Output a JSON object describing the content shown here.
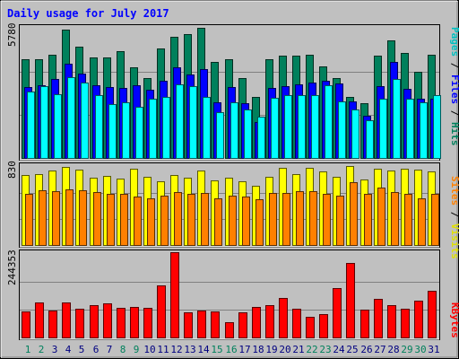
{
  "chart_data": [
    {
      "type": "bar",
      "title": "Daily usage for July 2017",
      "panel": "top",
      "ymax_label": "5780",
      "ylim": [
        0,
        5780
      ],
      "categories": [
        "1",
        "2",
        "3",
        "4",
        "5",
        "6",
        "7",
        "8",
        "9",
        "10",
        "11",
        "12",
        "13",
        "14",
        "15",
        "16",
        "17",
        "18",
        "19",
        "20",
        "21",
        "22",
        "23",
        "24",
        "25",
        "26",
        "27",
        "28",
        "29",
        "30",
        "31"
      ],
      "series": [
        {
          "name": "Hits",
          "color": "#00805c",
          "values": [
            4380,
            4380,
            4580,
            5680,
            4900,
            4430,
            4430,
            4700,
            4030,
            3530,
            4830,
            5330,
            5480,
            5730,
            4230,
            4380,
            3530,
            2730,
            4380,
            4530,
            4530,
            4580,
            4050,
            3530,
            2730,
            2430,
            4530,
            5180,
            4630,
            3830,
            4580
          ]
        },
        {
          "name": "Files",
          "color": "#0000ff",
          "values": [
            3150,
            3230,
            3480,
            4150,
            3730,
            3230,
            3130,
            3100,
            3230,
            3030,
            3430,
            4030,
            3680,
            3930,
            2480,
            3130,
            2430,
            1630,
            3100,
            3180,
            3280,
            3330,
            3430,
            3300,
            2530,
            1880,
            3180,
            4250,
            3080,
            2630,
            2630
          ]
        },
        {
          "name": "Pages",
          "color": "#00ffff",
          "values": [
            2950,
            3180,
            2830,
            3580,
            3330,
            2780,
            2380,
            2480,
            2280,
            2630,
            2730,
            3280,
            3180,
            2730,
            2030,
            2480,
            2180,
            1830,
            2680,
            2780,
            2780,
            2780,
            3230,
            2530,
            2180,
            1680,
            2630,
            3480,
            2630,
            2480,
            2780
          ]
        }
      ]
    },
    {
      "type": "bar",
      "panel": "middle",
      "ymax_label": "830",
      "ylim": [
        0,
        830
      ],
      "categories": [
        "1",
        "2",
        "3",
        "4",
        "5",
        "6",
        "7",
        "8",
        "9",
        "10",
        "11",
        "12",
        "13",
        "14",
        "15",
        "16",
        "17",
        "18",
        "19",
        "20",
        "21",
        "22",
        "23",
        "24",
        "25",
        "26",
        "27",
        "28",
        "29",
        "30",
        "31"
      ],
      "series": [
        {
          "name": "Visits",
          "color": "#ffff00",
          "values": [
            725,
            738,
            775,
            808,
            785,
            700,
            720,
            690,
            795,
            710,
            662,
            730,
            702,
            778,
            672,
            702,
            660,
            620,
            710,
            800,
            735,
            800,
            765,
            712,
            818,
            685,
            792,
            775,
            792,
            780,
            770
          ]
        },
        {
          "name": "Sites",
          "color": "#ff8000",
          "values": [
            538,
            575,
            565,
            585,
            570,
            551,
            538,
            531,
            511,
            487,
            513,
            551,
            539,
            541,
            493,
            513,
            511,
            480,
            543,
            543,
            565,
            559,
            531,
            519,
            651,
            531,
            602,
            551,
            536,
            493,
            531
          ]
        }
      ]
    },
    {
      "type": "bar",
      "panel": "bottom",
      "ymax_label": "244353",
      "ylim": [
        0,
        244353
      ],
      "categories": [
        "1",
        "2",
        "3",
        "4",
        "5",
        "6",
        "7",
        "8",
        "9",
        "10",
        "11",
        "12",
        "13",
        "14",
        "15",
        "16",
        "17",
        "18",
        "19",
        "20",
        "21",
        "22",
        "23",
        "24",
        "25",
        "26",
        "27",
        "28",
        "29",
        "30",
        "31"
      ],
      "series": [
        {
          "name": "KBytes",
          "color": "#ff0000",
          "values": [
            77000,
            102000,
            78000,
            101000,
            85000,
            93000,
            98000,
            86000,
            90000,
            86000,
            149000,
            244000,
            74000,
            78000,
            77000,
            45000,
            74000,
            90000,
            95000,
            114000,
            84000,
            61000,
            69000,
            143000,
            214000,
            81000,
            113000,
            93000,
            85000,
            106000,
            135000
          ]
        }
      ]
    }
  ],
  "x_labels": [
    {
      "day": "1",
      "color": "#00805c"
    },
    {
      "day": "2",
      "color": "#00805c"
    },
    {
      "day": "3",
      "color": "#000080"
    },
    {
      "day": "4",
      "color": "#000080"
    },
    {
      "day": "5",
      "color": "#000080"
    },
    {
      "day": "6",
      "color": "#000080"
    },
    {
      "day": "7",
      "color": "#000080"
    },
    {
      "day": "8",
      "color": "#00805c"
    },
    {
      "day": "9",
      "color": "#00805c"
    },
    {
      "day": "10",
      "color": "#000080"
    },
    {
      "day": "11",
      "color": "#000080"
    },
    {
      "day": "12",
      "color": "#000080"
    },
    {
      "day": "13",
      "color": "#000080"
    },
    {
      "day": "14",
      "color": "#000080"
    },
    {
      "day": "15",
      "color": "#00805c"
    },
    {
      "day": "16",
      "color": "#00805c"
    },
    {
      "day": "17",
      "color": "#000080"
    },
    {
      "day": "18",
      "color": "#000080"
    },
    {
      "day": "19",
      "color": "#000080"
    },
    {
      "day": "20",
      "color": "#000080"
    },
    {
      "day": "21",
      "color": "#000080"
    },
    {
      "day": "22",
      "color": "#00805c"
    },
    {
      "day": "23",
      "color": "#00805c"
    },
    {
      "day": "24",
      "color": "#000080"
    },
    {
      "day": "25",
      "color": "#000080"
    },
    {
      "day": "26",
      "color": "#000080"
    },
    {
      "day": "27",
      "color": "#000080"
    },
    {
      "day": "28",
      "color": "#000080"
    },
    {
      "day": "29",
      "color": "#00805c"
    },
    {
      "day": "30",
      "color": "#00805c"
    },
    {
      "day": "31",
      "color": "#000080"
    }
  ],
  "side_labels": {
    "top": [
      {
        "text": "Pages",
        "color": "#00c0c0"
      },
      {
        "text": " / ",
        "color": "#000000"
      },
      {
        "text": "Files",
        "color": "#0000ff"
      },
      {
        "text": " / ",
        "color": "#000000"
      },
      {
        "text": "Hits",
        "color": "#00805c"
      }
    ],
    "middle": [
      {
        "text": "Sites",
        "color": "#ff8000"
      },
      {
        "text": " / ",
        "color": "#000000"
      },
      {
        "text": "Visits",
        "color": "#e0e000"
      }
    ],
    "bottom": [
      {
        "text": "KBytes",
        "color": "#ff0000"
      }
    ]
  },
  "colors": {
    "background": "#c0c0c0",
    "title": "#0000ff",
    "panel_fill": "#c0c0c0",
    "gridline": "#808080"
  }
}
